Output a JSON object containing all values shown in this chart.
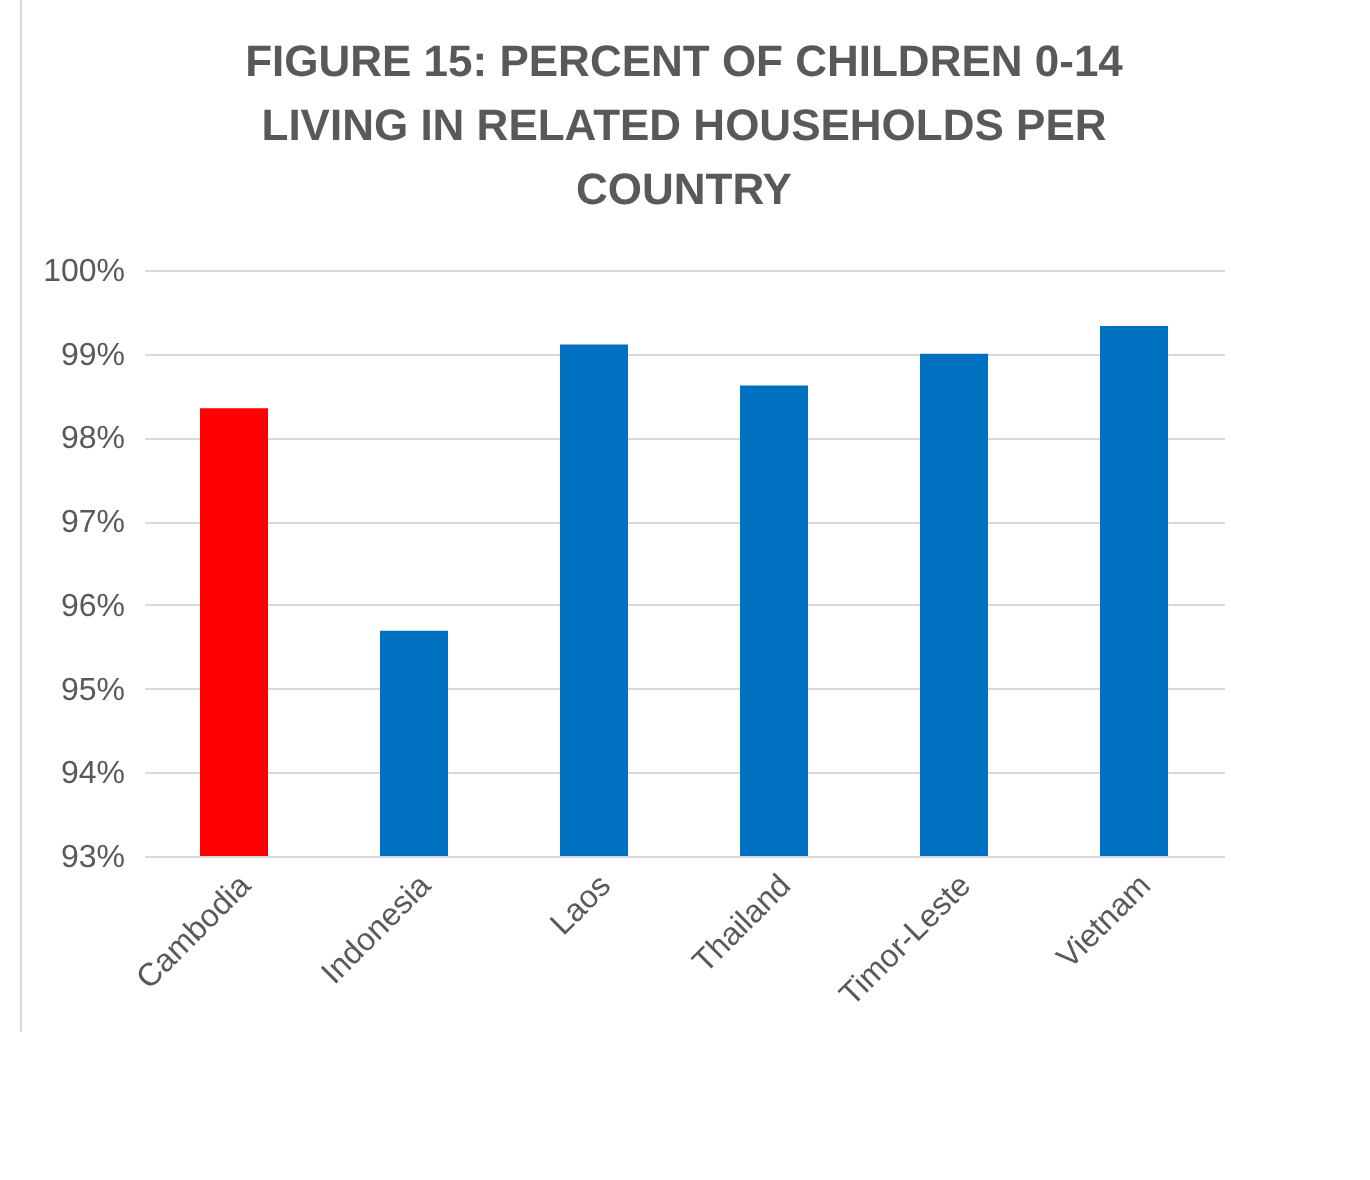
{
  "chart_data": {
    "type": "bar",
    "title": "FIGURE 15: PERCENT OF CHILDREN 0-14 LIVING IN RELATED HOUSEHOLDS  PER COUNTRY",
    "categories": [
      "Cambodia",
      "Indonesia",
      "Laos",
      "Thailand",
      "Timor-Leste",
      "Vietnam"
    ],
    "values": [
      98.35,
      95.69,
      99.11,
      98.62,
      99.0,
      99.33
    ],
    "colors": [
      "#ff0000",
      "#0070c0",
      "#0070c0",
      "#0070c0",
      "#0070c0",
      "#0070c0"
    ],
    "ylim": [
      93,
      100
    ],
    "yticks": [
      {
        "value": 93,
        "label": "93%"
      },
      {
        "value": 94,
        "label": "94%"
      },
      {
        "value": 95,
        "label": "95%"
      },
      {
        "value": 96,
        "label": "96%"
      },
      {
        "value": 97,
        "label": "97%"
      },
      {
        "value": 98,
        "label": "98%"
      },
      {
        "value": 99,
        "label": "99%"
      },
      {
        "value": 100,
        "label": "100%"
      }
    ],
    "grid": "y",
    "legend": false
  }
}
